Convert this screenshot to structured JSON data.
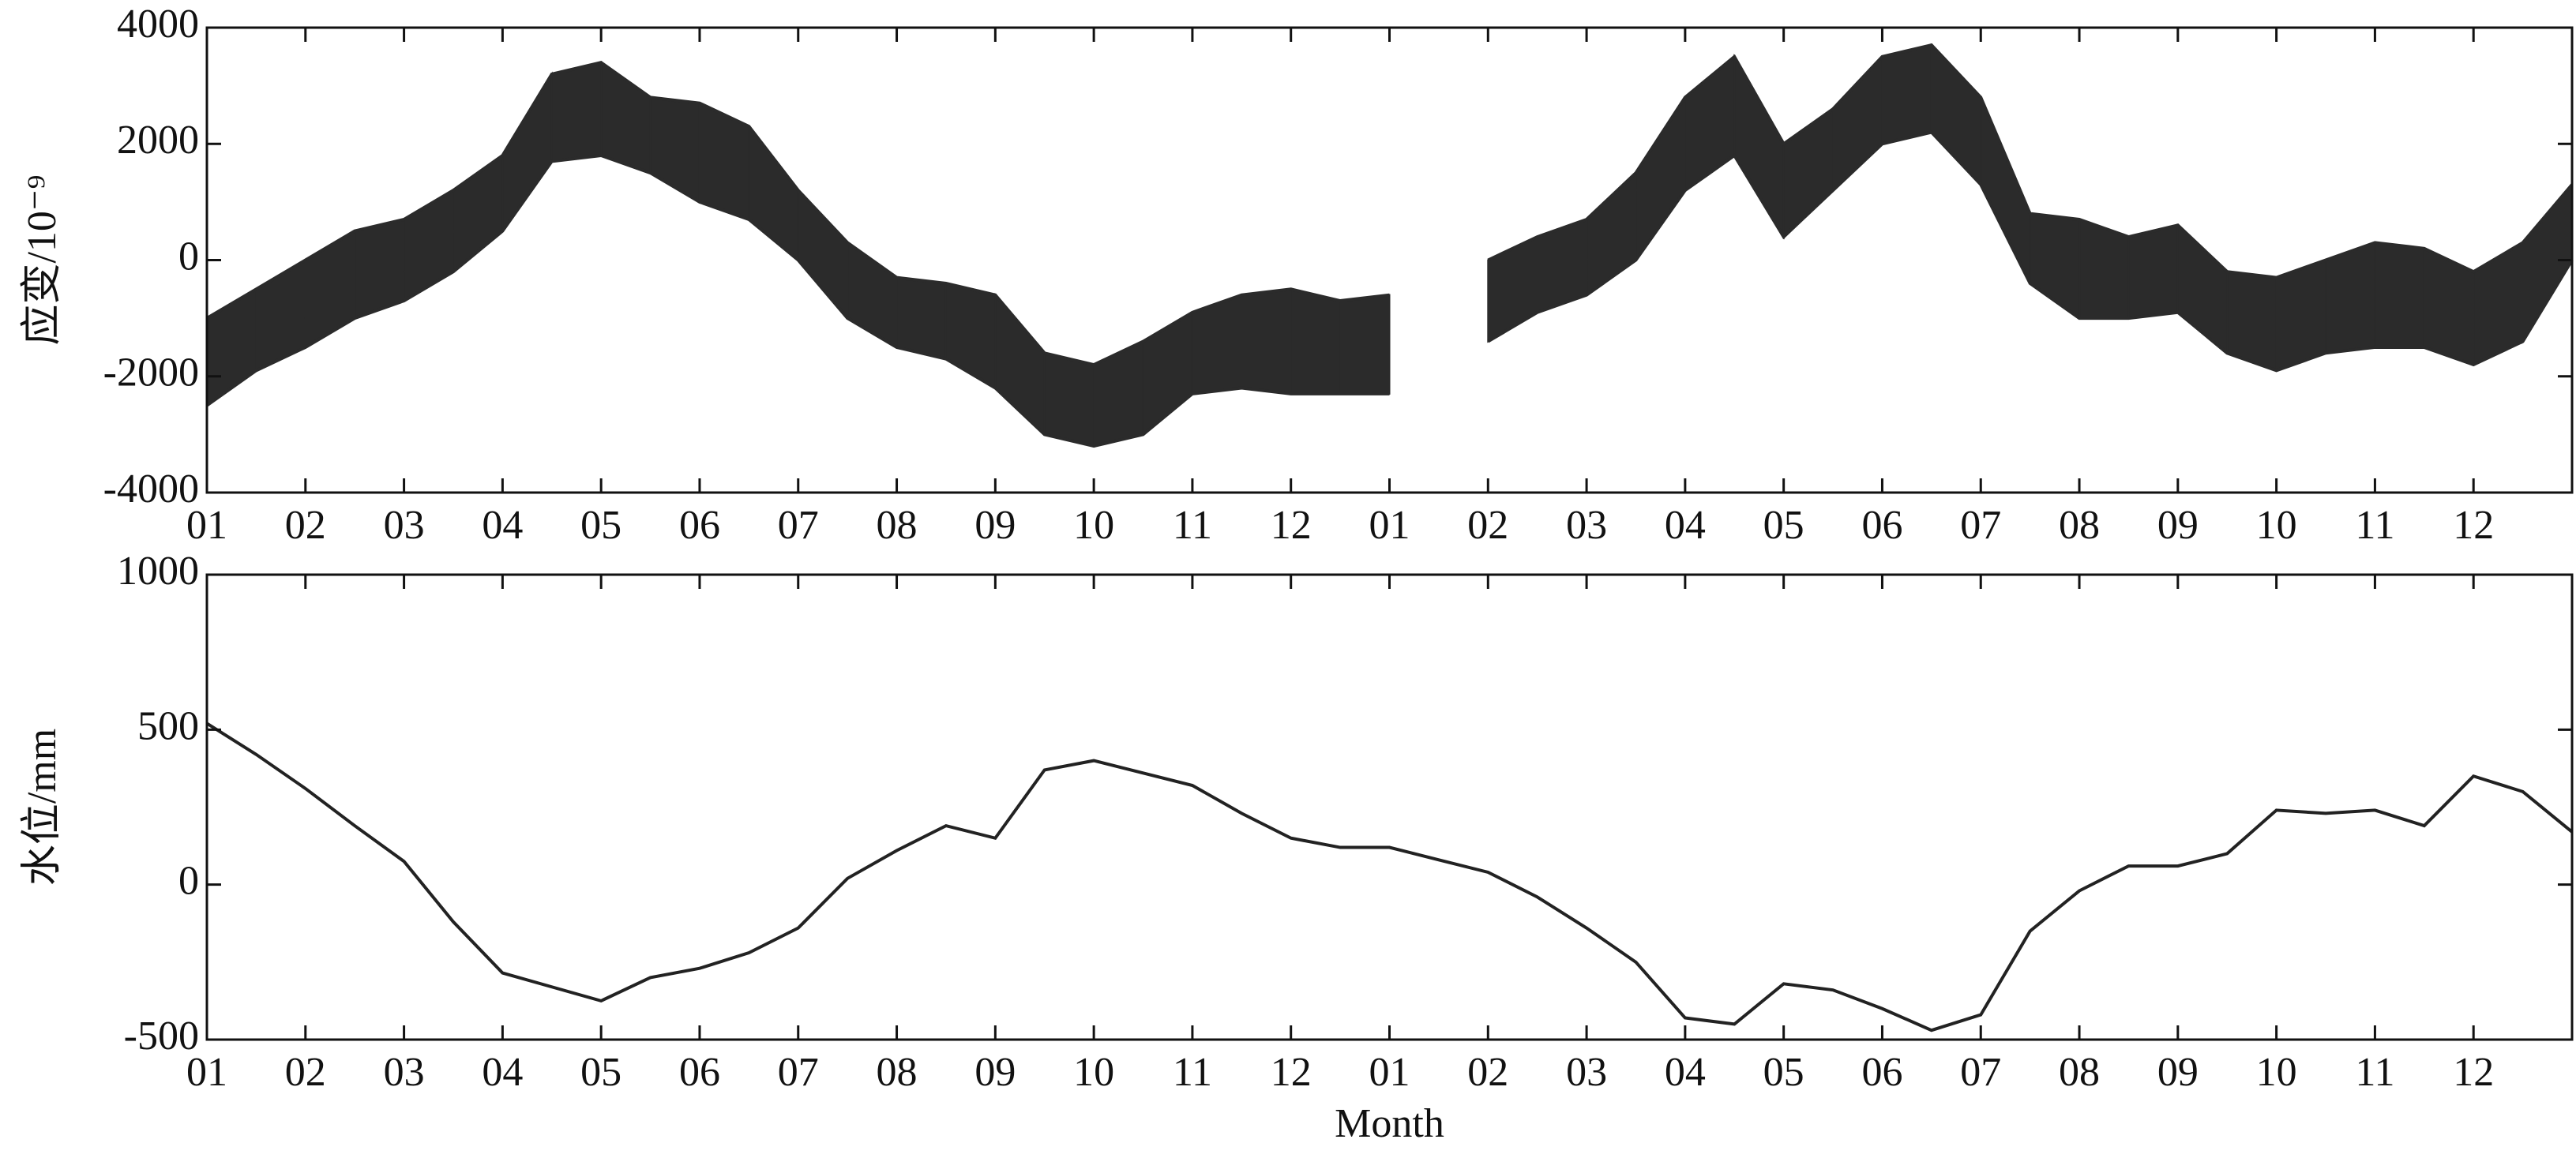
{
  "chart_data": [
    {
      "type": "band",
      "ylabel": "应变/10⁻⁹",
      "color": "#2b2b2b",
      "x": [
        0,
        0.5,
        1,
        1.5,
        2,
        2.5,
        3,
        3.5,
        4,
        4.5,
        5,
        5.5,
        6,
        6.5,
        7,
        7.5,
        8,
        8.5,
        9,
        9.5,
        10,
        10.5,
        11,
        11.5,
        12,
        12.5,
        13,
        13.5,
        14,
        14.5,
        15,
        15.5,
        16,
        16.5,
        17,
        17.5,
        18,
        18.5,
        19,
        19.5,
        20,
        20.5,
        21,
        21.5,
        22,
        22.5,
        23,
        23.5,
        24
      ],
      "lower": [
        -2500,
        -1900,
        -1500,
        -1000,
        -700,
        -200,
        500,
        1700,
        1800,
        1500,
        1000,
        700,
        0,
        -1000,
        -1500,
        -1700,
        -2200,
        -3000,
        -3200,
        -3000,
        -2300,
        -2200,
        -2300,
        -2300,
        -2300,
        null,
        -1400,
        -900,
        -600,
        0,
        1200,
        1800,
        400,
        1200,
        2000,
        2200,
        1300,
        -400,
        -1000,
        -1000,
        -900,
        -1600,
        -1900,
        -1600,
        -1500,
        -1500,
        -1800,
        -1400,
        0
      ],
      "upper": [
        -1000,
        -500,
        0,
        500,
        700,
        1200,
        1800,
        3200,
        3400,
        2800,
        2700,
        2300,
        1200,
        300,
        -300,
        -400,
        -600,
        -1600,
        -1800,
        -1400,
        -900,
        -600,
        -500,
        -700,
        -600,
        null,
        0,
        400,
        700,
        1500,
        2800,
        3500,
        2000,
        2600,
        3500,
        3700,
        2800,
        800,
        700,
        400,
        600,
        -200,
        -300,
        0,
        300,
        200,
        -200,
        300,
        1300
      ],
      "xlim": [
        0,
        24
      ],
      "xticks": [
        {
          "value": 0,
          "label": "01"
        },
        {
          "value": 1,
          "label": "02"
        },
        {
          "value": 2,
          "label": "03"
        },
        {
          "value": 3,
          "label": "04"
        },
        {
          "value": 4,
          "label": "05"
        },
        {
          "value": 5,
          "label": "06"
        },
        {
          "value": 6,
          "label": "07"
        },
        {
          "value": 7,
          "label": "08"
        },
        {
          "value": 8,
          "label": "09"
        },
        {
          "value": 9,
          "label": "10"
        },
        {
          "value": 10,
          "label": "11"
        },
        {
          "value": 11,
          "label": "12"
        },
        {
          "value": 12,
          "label": "01"
        },
        {
          "value": 13,
          "label": "02"
        },
        {
          "value": 14,
          "label": "03"
        },
        {
          "value": 15,
          "label": "04"
        },
        {
          "value": 16,
          "label": "05"
        },
        {
          "value": 17,
          "label": "06"
        },
        {
          "value": 18,
          "label": "07"
        },
        {
          "value": 19,
          "label": "08"
        },
        {
          "value": 20,
          "label": "09"
        },
        {
          "value": 21,
          "label": "10"
        },
        {
          "value": 22,
          "label": "11"
        },
        {
          "value": 23,
          "label": "12"
        }
      ],
      "ylim": [
        -4000,
        4000
      ],
      "yticks": [
        -4000,
        -2000,
        0,
        2000,
        4000
      ]
    },
    {
      "type": "line",
      "ylabel": "水位/mm",
      "xlabel": "Month",
      "color": "#222222",
      "x": [
        0,
        0.5,
        1,
        1.5,
        2,
        2.5,
        3,
        3.5,
        4,
        4.5,
        5,
        5.5,
        6,
        6.5,
        7,
        7.5,
        8,
        8.5,
        9,
        9.5,
        10,
        10.5,
        11,
        11.5,
        12,
        12.5,
        13,
        13.5,
        14,
        14.5,
        15,
        15.5,
        16,
        16.5,
        17,
        17.5,
        18,
        18.5,
        19,
        19.5,
        20,
        20.5,
        21,
        21.5,
        22,
        22.5,
        23,
        23.5,
        24
      ],
      "values": [
        520,
        420,
        310,
        190,
        75,
        -120,
        -285,
        -330,
        -375,
        -300,
        -270,
        -220,
        -140,
        20,
        110,
        190,
        150,
        370,
        400,
        360,
        320,
        230,
        150,
        120,
        120,
        80,
        40,
        -40,
        -140,
        -250,
        -430,
        -450,
        -320,
        -340,
        -400,
        -470,
        -420,
        -150,
        -20,
        60,
        60,
        100,
        240,
        230,
        240,
        190,
        350,
        300,
        170
      ],
      "xlim": [
        0,
        24
      ],
      "xticks": [
        {
          "value": 0,
          "label": "01"
        },
        {
          "value": 1,
          "label": "02"
        },
        {
          "value": 2,
          "label": "03"
        },
        {
          "value": 3,
          "label": "04"
        },
        {
          "value": 4,
          "label": "05"
        },
        {
          "value": 5,
          "label": "06"
        },
        {
          "value": 6,
          "label": "07"
        },
        {
          "value": 7,
          "label": "08"
        },
        {
          "value": 8,
          "label": "09"
        },
        {
          "value": 9,
          "label": "10"
        },
        {
          "value": 10,
          "label": "11"
        },
        {
          "value": 11,
          "label": "12"
        },
        {
          "value": 12,
          "label": "01"
        },
        {
          "value": 13,
          "label": "02"
        },
        {
          "value": 14,
          "label": "03"
        },
        {
          "value": 15,
          "label": "04"
        },
        {
          "value": 16,
          "label": "05"
        },
        {
          "value": 17,
          "label": "06"
        },
        {
          "value": 18,
          "label": "07"
        },
        {
          "value": 19,
          "label": "08"
        },
        {
          "value": 20,
          "label": "09"
        },
        {
          "value": 21,
          "label": "10"
        },
        {
          "value": 22,
          "label": "11"
        },
        {
          "value": 23,
          "label": "12"
        }
      ],
      "ylim": [
        -500,
        1000
      ],
      "yticks": [
        -500,
        0,
        500,
        1000
      ]
    }
  ]
}
